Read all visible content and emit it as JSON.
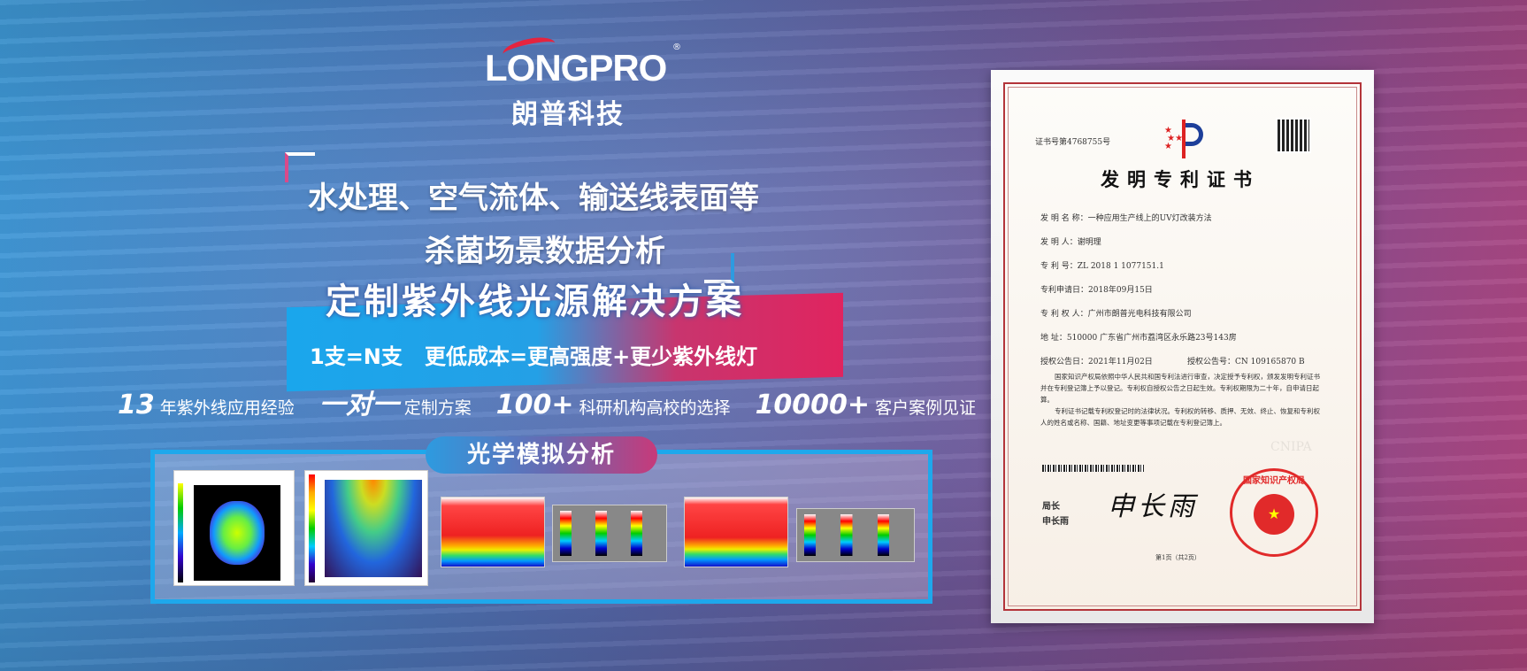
{
  "brand": {
    "logo_en": "LONGPRO",
    "logo_reg": "®",
    "logo_cn": "朗普科技"
  },
  "headline": {
    "line1": "水处理、空气流体、输送线表面等",
    "line2": "杀菌场景数据分析"
  },
  "banner": {
    "title": "定制紫外线光源解决方案",
    "subtitle": "1支=N支   更低成本=更高强度+更少紫外线灯"
  },
  "stats": [
    {
      "value": "13",
      "label": "年紫外线应用经验"
    },
    {
      "value": "一对一",
      "label": "定制方案"
    },
    {
      "value": "100+",
      "label": "科研机构高校的选择"
    },
    {
      "value": "10000+",
      "label": "客户案例见证"
    }
  ],
  "optical": {
    "label": "光学模拟分析"
  },
  "certificate": {
    "number": "证书号第4768755号",
    "title": "发明专利证书",
    "fields": [
      "发 明 名 称：一种应用生产线上的UV灯改装方法",
      "发   明   人：谢明理",
      "专   利   号：ZL 2018 1 1077151.1",
      "专利申请日：2018年09月15日",
      "专 利 权 人：广州市朗普光电科技有限公司",
      "地          址：510000 广东省广州市荔湾区永乐路23号143房"
    ],
    "grant_date": "授权公告日：2021年11月02日",
    "grant_no": "授权公告号：CN 109165870 B",
    "para1": "国家知识产权局依照中华人民共和国专利法进行审查，决定授予专利权，颁发发明专利证书并在专利登记簿上予以登记。专利权自授权公告之日起生效。专利权期限为二十年，自申请日起算。",
    "para2": "专利证书记载专利权登记时的法律状况。专利权的转移、质押、无效、终止、恢复和专利权人的姓名或名称、国籍、地址变更等事项记载在专利登记簿上。",
    "signer_title": "局长",
    "signer_name": "申长雨",
    "signature": "申长雨",
    "seal_text": "国家知识产权局",
    "page": "第1页（共2页）",
    "watermark": "CNIPA"
  },
  "colors": {
    "accent_blue": "#1ea8ec",
    "accent_pink": "#e0245f",
    "seal_red": "#e12a2a"
  }
}
